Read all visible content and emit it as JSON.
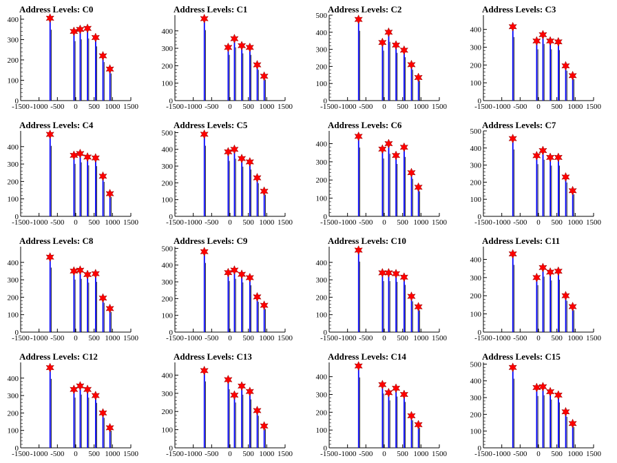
{
  "chart_data": [
    {
      "type": "bar",
      "title": "Address Levels: C0",
      "ylim": [
        0,
        420
      ],
      "yticks": [
        0,
        100,
        200,
        300,
        400
      ],
      "xlim": [
        -1500,
        1500
      ],
      "xticks": [
        -1500,
        -1000,
        -500,
        0,
        500,
        1000,
        1500
      ],
      "peaks": [
        {
          "x": -700,
          "y": 405
        },
        {
          "x": -50,
          "y": 340
        },
        {
          "x": 120,
          "y": 350
        },
        {
          "x": 320,
          "y": 355
        },
        {
          "x": 540,
          "y": 310
        },
        {
          "x": 740,
          "y": 220
        },
        {
          "x": 930,
          "y": 155
        }
      ]
    },
    {
      "type": "bar",
      "title": "Address Levels: C1",
      "ylim": [
        0,
        490
      ],
      "yticks": [
        0,
        100,
        200,
        300,
        400
      ],
      "xlim": [
        -1500,
        1500
      ],
      "xticks": [
        -1500,
        -1000,
        -500,
        0,
        500,
        1000,
        1500
      ],
      "peaks": [
        {
          "x": -700,
          "y": 470
        },
        {
          "x": -50,
          "y": 305
        },
        {
          "x": 120,
          "y": 355
        },
        {
          "x": 320,
          "y": 315
        },
        {
          "x": 540,
          "y": 305
        },
        {
          "x": 740,
          "y": 205
        },
        {
          "x": 930,
          "y": 140
        }
      ]
    },
    {
      "type": "bar",
      "title": "Address Levels: C2",
      "ylim": [
        0,
        500
      ],
      "yticks": [
        0,
        100,
        200,
        300,
        400,
        500
      ],
      "xlim": [
        -1500,
        1500
      ],
      "xticks": [
        -1500,
        -1000,
        -500,
        0,
        500,
        1000,
        1500
      ],
      "peaks": [
        {
          "x": -700,
          "y": 475
        },
        {
          "x": -50,
          "y": 340
        },
        {
          "x": 120,
          "y": 400
        },
        {
          "x": 320,
          "y": 325
        },
        {
          "x": 540,
          "y": 295
        },
        {
          "x": 740,
          "y": 210
        },
        {
          "x": 930,
          "y": 135
        }
      ]
    },
    {
      "type": "bar",
      "title": "Address Levels: C3",
      "ylim": [
        0,
        480
      ],
      "yticks": [
        0,
        100,
        200,
        300,
        400
      ],
      "xlim": [
        -1500,
        1500
      ],
      "xticks": [
        -1500,
        -1000,
        -500,
        0,
        500,
        1000,
        1500
      ],
      "peaks": [
        {
          "x": -700,
          "y": 415
        },
        {
          "x": -50,
          "y": 335
        },
        {
          "x": 120,
          "y": 370
        },
        {
          "x": 320,
          "y": 335
        },
        {
          "x": 540,
          "y": 330
        },
        {
          "x": 740,
          "y": 195
        },
        {
          "x": 930,
          "y": 140
        }
      ]
    },
    {
      "type": "bar",
      "title": "Address Levels: C4",
      "ylim": [
        0,
        490
      ],
      "yticks": [
        0,
        100,
        200,
        300,
        400
      ],
      "xlim": [
        -1500,
        1500
      ],
      "xticks": [
        -1500,
        -1000,
        -500,
        0,
        500,
        1000,
        1500
      ],
      "peaks": [
        {
          "x": -700,
          "y": 470
        },
        {
          "x": -50,
          "y": 350
        },
        {
          "x": 120,
          "y": 360
        },
        {
          "x": 320,
          "y": 340
        },
        {
          "x": 540,
          "y": 335
        },
        {
          "x": 740,
          "y": 230
        },
        {
          "x": 930,
          "y": 130
        }
      ]
    },
    {
      "type": "bar",
      "title": "Address Levels: C5",
      "ylim": [
        0,
        510
      ],
      "yticks": [
        0,
        100,
        200,
        300,
        400,
        500
      ],
      "xlim": [
        -1500,
        1500
      ],
      "xticks": [
        -1500,
        -1000,
        -500,
        0,
        500,
        1000,
        1500
      ],
      "peaks": [
        {
          "x": -700,
          "y": 490
        },
        {
          "x": -50,
          "y": 385
        },
        {
          "x": 120,
          "y": 400
        },
        {
          "x": 320,
          "y": 345
        },
        {
          "x": 540,
          "y": 325
        },
        {
          "x": 740,
          "y": 230
        },
        {
          "x": 930,
          "y": 150
        }
      ]
    },
    {
      "type": "bar",
      "title": "Address Levels: C6",
      "ylim": [
        0,
        470
      ],
      "yticks": [
        0,
        100,
        200,
        300,
        400
      ],
      "xlim": [
        -1500,
        1500
      ],
      "xticks": [
        -1500,
        -1000,
        -500,
        0,
        500,
        1000,
        1500
      ],
      "peaks": [
        {
          "x": -700,
          "y": 440
        },
        {
          "x": -50,
          "y": 370
        },
        {
          "x": 120,
          "y": 400
        },
        {
          "x": 320,
          "y": 335
        },
        {
          "x": 540,
          "y": 380
        },
        {
          "x": 740,
          "y": 240
        },
        {
          "x": 930,
          "y": 160
        }
      ]
    },
    {
      "type": "bar",
      "title": "Address Levels: C7",
      "ylim": [
        0,
        500
      ],
      "yticks": [
        0,
        100,
        200,
        300,
        400,
        500
      ],
      "xlim": [
        -1500,
        1500
      ],
      "xticks": [
        -1500,
        -1000,
        -500,
        0,
        500,
        1000,
        1500
      ],
      "peaks": [
        {
          "x": -700,
          "y": 455
        },
        {
          "x": -50,
          "y": 355
        },
        {
          "x": 120,
          "y": 385
        },
        {
          "x": 320,
          "y": 345
        },
        {
          "x": 540,
          "y": 345
        },
        {
          "x": 740,
          "y": 230
        },
        {
          "x": 930,
          "y": 150
        }
      ]
    },
    {
      "type": "bar",
      "title": "Address Levels: C8",
      "ylim": [
        0,
        490
      ],
      "yticks": [
        0,
        100,
        200,
        300,
        400
      ],
      "xlim": [
        -1500,
        1500
      ],
      "xticks": [
        -1500,
        -1000,
        -500,
        0,
        500,
        1000,
        1500
      ],
      "peaks": [
        {
          "x": -700,
          "y": 430
        },
        {
          "x": -50,
          "y": 350
        },
        {
          "x": 120,
          "y": 355
        },
        {
          "x": 320,
          "y": 330
        },
        {
          "x": 540,
          "y": 335
        },
        {
          "x": 740,
          "y": 195
        },
        {
          "x": 930,
          "y": 135
        }
      ]
    },
    {
      "type": "bar",
      "title": "Address Levels: C9",
      "ylim": [
        0,
        510
      ],
      "yticks": [
        0,
        100,
        200,
        300,
        400,
        500
      ],
      "xlim": [
        -1500,
        1500
      ],
      "xticks": [
        -1500,
        -1000,
        -500,
        0,
        500,
        1000,
        1500
      ],
      "peaks": [
        {
          "x": -700,
          "y": 480
        },
        {
          "x": -50,
          "y": 355
        },
        {
          "x": 120,
          "y": 370
        },
        {
          "x": 320,
          "y": 345
        },
        {
          "x": 540,
          "y": 325
        },
        {
          "x": 740,
          "y": 210
        },
        {
          "x": 930,
          "y": 160
        }
      ]
    },
    {
      "type": "bar",
      "title": "Address Levels: C10",
      "ylim": [
        0,
        490
      ],
      "yticks": [
        0,
        100,
        200,
        300,
        400
      ],
      "xlim": [
        -1500,
        1500
      ],
      "xticks": [
        -1500,
        -1000,
        -500,
        0,
        500,
        1000,
        1500
      ],
      "peaks": [
        {
          "x": -700,
          "y": 470
        },
        {
          "x": -50,
          "y": 340
        },
        {
          "x": 120,
          "y": 340
        },
        {
          "x": 320,
          "y": 335
        },
        {
          "x": 540,
          "y": 315
        },
        {
          "x": 740,
          "y": 205
        },
        {
          "x": 930,
          "y": 145
        }
      ]
    },
    {
      "type": "bar",
      "title": "Address Levels: C11",
      "ylim": [
        0,
        470
      ],
      "yticks": [
        0,
        100,
        200,
        300,
        400
      ],
      "xlim": [
        -1500,
        1500
      ],
      "xticks": [
        -1500,
        -1000,
        -500,
        0,
        500,
        1000,
        1500
      ],
      "peaks": [
        {
          "x": -700,
          "y": 430
        },
        {
          "x": -50,
          "y": 300
        },
        {
          "x": 120,
          "y": 355
        },
        {
          "x": 320,
          "y": 330
        },
        {
          "x": 540,
          "y": 335
        },
        {
          "x": 740,
          "y": 200
        },
        {
          "x": 930,
          "y": 140
        }
      ]
    },
    {
      "type": "bar",
      "title": "Address Levels: C12",
      "ylim": [
        0,
        490
      ],
      "yticks": [
        0,
        100,
        200,
        300,
        400
      ],
      "xlim": [
        -1500,
        1500
      ],
      "xticks": [
        -1500,
        -1000,
        -500,
        0,
        500,
        1000,
        1500
      ],
      "peaks": [
        {
          "x": -700,
          "y": 460
        },
        {
          "x": -50,
          "y": 335
        },
        {
          "x": 120,
          "y": 355
        },
        {
          "x": 320,
          "y": 335
        },
        {
          "x": 540,
          "y": 300
        },
        {
          "x": 740,
          "y": 200
        },
        {
          "x": 930,
          "y": 115
        }
      ]
    },
    {
      "type": "bar",
      "title": "Address Levels: C13",
      "ylim": [
        0,
        470
      ],
      "yticks": [
        0,
        100,
        200,
        300,
        400
      ],
      "xlim": [
        -1500,
        1500
      ],
      "xticks": [
        -1500,
        -1000,
        -500,
        0,
        500,
        1000,
        1500
      ],
      "peaks": [
        {
          "x": -700,
          "y": 425
        },
        {
          "x": -50,
          "y": 375
        },
        {
          "x": 120,
          "y": 290
        },
        {
          "x": 320,
          "y": 340
        },
        {
          "x": 540,
          "y": 310
        },
        {
          "x": 740,
          "y": 205
        },
        {
          "x": 930,
          "y": 120
        }
      ]
    },
    {
      "type": "bar",
      "title": "Address Levels: C14",
      "ylim": [
        0,
        480
      ],
      "yticks": [
        0,
        100,
        200,
        300,
        400
      ],
      "xlim": [
        -1500,
        1500
      ],
      "xticks": [
        -1500,
        -1000,
        -500,
        0,
        500,
        1000,
        1500
      ],
      "peaks": [
        {
          "x": -700,
          "y": 460
        },
        {
          "x": -50,
          "y": 355
        },
        {
          "x": 120,
          "y": 310
        },
        {
          "x": 320,
          "y": 335
        },
        {
          "x": 540,
          "y": 300
        },
        {
          "x": 740,
          "y": 180
        },
        {
          "x": 930,
          "y": 130
        }
      ]
    },
    {
      "type": "bar",
      "title": "Address Levels: C15",
      "ylim": [
        0,
        510
      ],
      "yticks": [
        0,
        100,
        200,
        300,
        400,
        500
      ],
      "xlim": [
        -1500,
        1500
      ],
      "xticks": [
        -1500,
        -1000,
        -500,
        0,
        500,
        1000,
        1500
      ],
      "peaks": [
        {
          "x": -700,
          "y": 480
        },
        {
          "x": -50,
          "y": 360
        },
        {
          "x": 120,
          "y": 365
        },
        {
          "x": 320,
          "y": 335
        },
        {
          "x": 540,
          "y": 315
        },
        {
          "x": 740,
          "y": 215
        },
        {
          "x": 930,
          "y": 145
        }
      ]
    }
  ],
  "colors": {
    "bar": "#0000ff",
    "bar_dark": "#000000",
    "marker": "#ff0000",
    "axis": "#000000",
    "background": "#ffffff"
  }
}
